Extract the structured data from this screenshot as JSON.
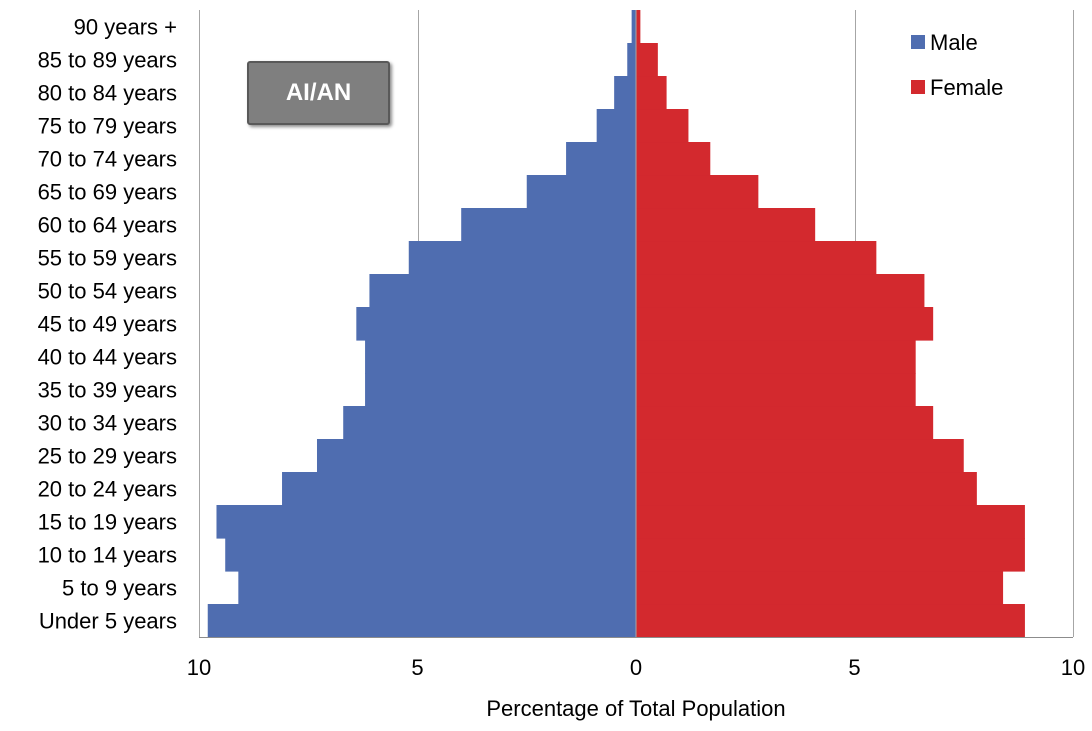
{
  "chart_data": {
    "type": "bar",
    "orientation": "horizontal-population-pyramid",
    "categories": [
      "Under 5 years",
      "5 to 9 years",
      "10 to 14 years",
      "15 to 19 years",
      "20 to 24 years",
      "25 to 29 years",
      "30 to 34 years",
      "35 to 39 years",
      "40 to 44 years",
      "45 to 49 years",
      "50 to 54 years",
      "55 to 59 years",
      "60 to 64 years",
      "65 to 69 years",
      "70 to 74 years",
      "75 to 79 years",
      "80 to 84 years",
      "85 to 89 years",
      "90 years +"
    ],
    "series": [
      {
        "name": "Male",
        "color": "#4f6db0",
        "values": [
          9.8,
          9.1,
          9.4,
          9.6,
          8.1,
          7.3,
          6.7,
          6.2,
          6.2,
          6.4,
          6.1,
          5.2,
          4.0,
          2.5,
          1.6,
          0.9,
          0.5,
          0.2,
          0.1
        ]
      },
      {
        "name": "Female",
        "color": "#d3292e",
        "values": [
          8.9,
          8.4,
          8.9,
          8.9,
          7.8,
          7.5,
          6.8,
          6.4,
          6.4,
          6.8,
          6.6,
          5.5,
          4.1,
          2.8,
          1.7,
          1.2,
          0.7,
          0.5,
          0.1
        ]
      }
    ],
    "xlabel": "Percentage of Total Population",
    "xlim": [
      -10,
      10
    ],
    "xticks": [
      -10,
      -5,
      0,
      5,
      10
    ],
    "xtick_labels": [
      "10",
      "5",
      "0",
      "5",
      "10"
    ],
    "grid": "vertical",
    "legend_position": "top-right",
    "annotation": "AI/AN"
  }
}
